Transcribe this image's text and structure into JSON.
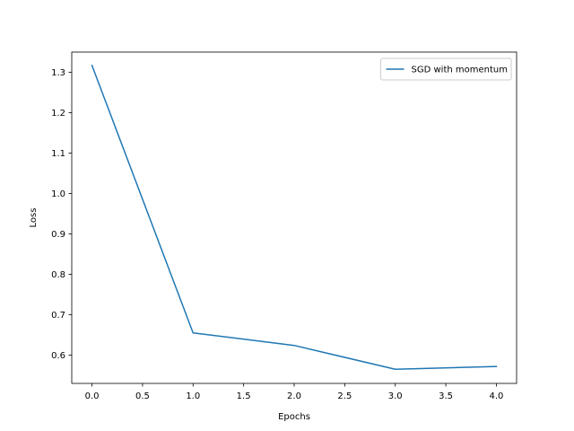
{
  "chart_data": {
    "type": "line",
    "title": "",
    "xlabel": "Epochs",
    "ylabel": "Loss",
    "xlim": [
      -0.2,
      4.2
    ],
    "ylim": [
      0.53,
      1.35
    ],
    "xticks": [
      0.0,
      0.5,
      1.0,
      1.5,
      2.0,
      2.5,
      3.0,
      3.5,
      4.0
    ],
    "xtick_labels": [
      "0.0",
      "0.5",
      "1.0",
      "1.5",
      "2.0",
      "2.5",
      "3.0",
      "3.5",
      "4.0"
    ],
    "yticks": [
      0.6,
      0.7,
      0.8,
      0.9,
      1.0,
      1.1,
      1.2,
      1.3
    ],
    "ytick_labels": [
      "0.6",
      "0.7",
      "0.8",
      "0.9",
      "1.0",
      "1.1",
      "1.2",
      "1.3"
    ],
    "grid": false,
    "legend_position": "top-right",
    "series": [
      {
        "name": "SGD with momentum",
        "color": "#1f77b4",
        "x": [
          0,
          1,
          2,
          3,
          4
        ],
        "y": [
          1.317,
          0.655,
          0.624,
          0.565,
          0.572
        ]
      }
    ]
  }
}
